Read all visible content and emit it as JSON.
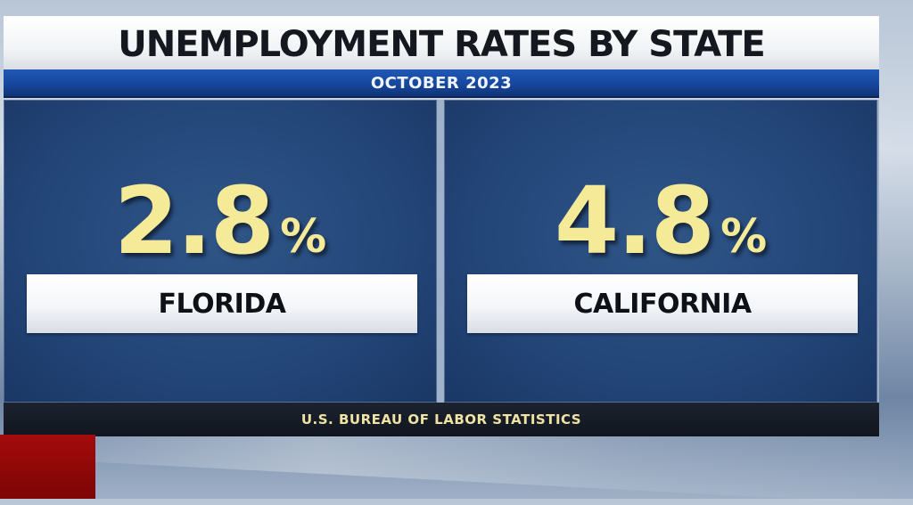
{
  "graphic": {
    "title": "UNEMPLOYMENT RATES BY STATE",
    "subtitle": "OCTOBER 2023",
    "panels": [
      {
        "value": "2.8",
        "unit": "%",
        "label": "FLORIDA"
      },
      {
        "value": "4.8",
        "unit": "%",
        "label": "CALIFORNIA"
      }
    ],
    "source": "U.S. BUREAU OF LABOR STATISTICS"
  },
  "colors": {
    "title_bar": "#ffffff",
    "subtitle_bar": "#17479c",
    "panel_background": "#24477a",
    "value_text": "#f5ea98",
    "source_bar": "#10151e",
    "source_text": "#efe2a2",
    "accent_block": "#a40b0b"
  }
}
